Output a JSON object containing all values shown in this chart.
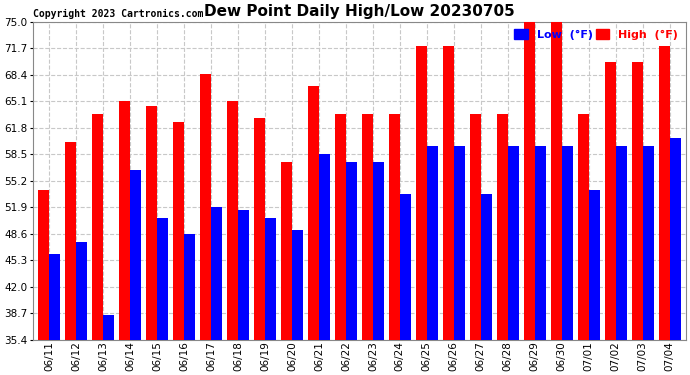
{
  "title": "Dew Point Daily High/Low 20230705",
  "copyright": "Copyright 2023 Cartronics.com",
  "dates": [
    "06/11",
    "06/12",
    "06/13",
    "06/14",
    "06/15",
    "06/16",
    "06/17",
    "06/18",
    "06/19",
    "06/20",
    "06/21",
    "06/22",
    "06/23",
    "06/24",
    "06/25",
    "06/26",
    "06/27",
    "06/28",
    "06/29",
    "06/30",
    "07/01",
    "07/02",
    "07/03",
    "07/04"
  ],
  "high": [
    54.0,
    60.0,
    63.5,
    65.1,
    64.5,
    62.5,
    68.5,
    65.1,
    63.0,
    57.5,
    67.0,
    63.5,
    63.5,
    63.5,
    72.0,
    72.0,
    63.5,
    63.5,
    75.0,
    75.0,
    63.5,
    70.0,
    70.0,
    72.0
  ],
  "low": [
    46.0,
    47.5,
    38.5,
    56.5,
    50.5,
    48.5,
    51.9,
    51.5,
    50.5,
    49.0,
    58.5,
    57.5,
    57.5,
    53.5,
    59.5,
    59.5,
    53.5,
    59.5,
    59.5,
    59.5,
    54.0,
    59.5,
    59.5,
    60.5
  ],
  "high_color": "#ff0000",
  "low_color": "#0000ff",
  "bg_color": "#ffffff",
  "plot_bg_color": "#ffffff",
  "grid_color": "#c8c8c8",
  "yticks": [
    35.4,
    38.7,
    42.0,
    45.3,
    48.6,
    51.9,
    55.2,
    58.5,
    61.8,
    65.1,
    68.4,
    71.7,
    75.0
  ],
  "ylim_min": 35.4,
  "ylim_max": 75.0,
  "title_fontsize": 11,
  "tick_fontsize": 7.5,
  "legend_fontsize": 8,
  "copyright_fontsize": 7
}
